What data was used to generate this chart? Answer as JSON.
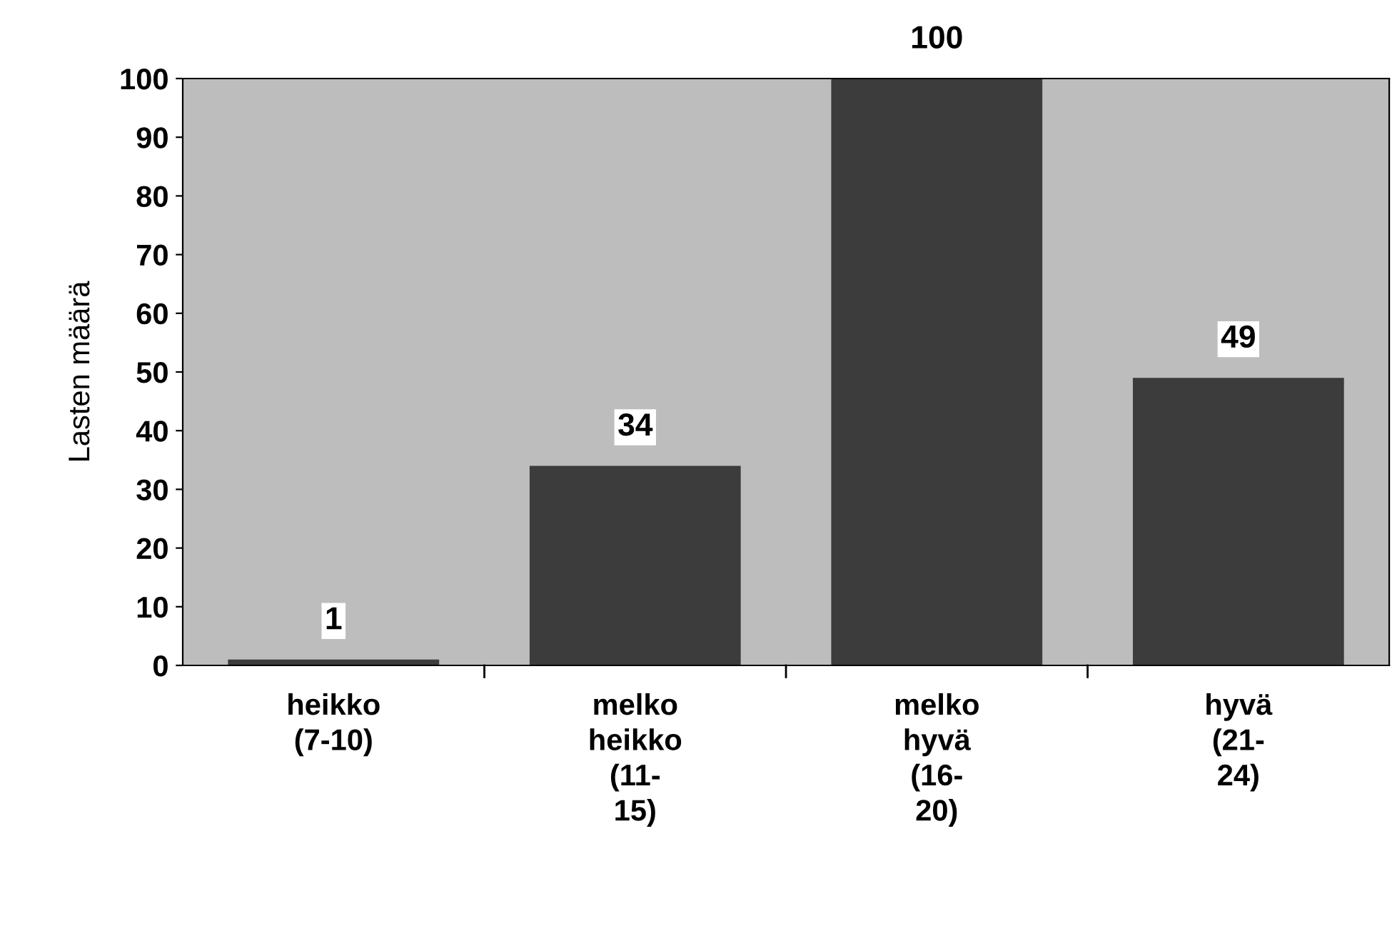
{
  "chart_data": {
    "type": "bar",
    "ylabel": "Lasten määrä",
    "categories": [
      "heikko\n(7-10)",
      "melko\nheikko\n(11-\n15)",
      "melko\nhyvä\n(16-\n20)",
      "hyvä\n(21-\n24)"
    ],
    "values": [
      1,
      34,
      100,
      49
    ],
    "color": "#3c3c3c",
    "ylim": [
      0,
      100
    ],
    "yticks": [
      0,
      10,
      20,
      30,
      40,
      50,
      60,
      70,
      80,
      90,
      100
    ],
    "grid": false,
    "data_labels": true
  }
}
